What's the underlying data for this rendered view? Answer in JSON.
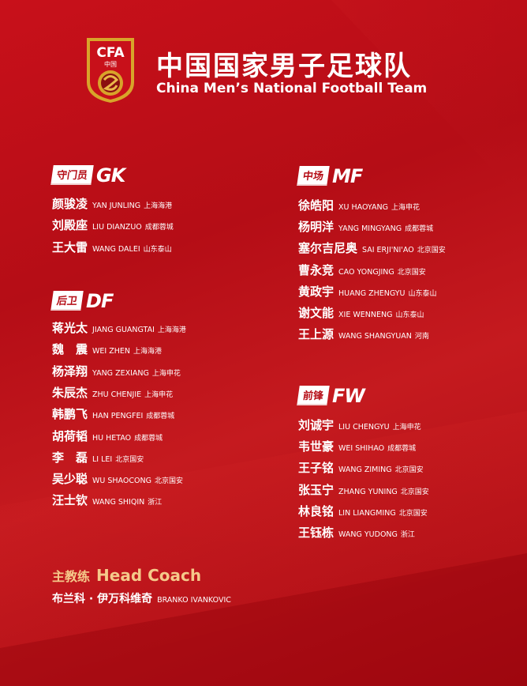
{
  "header": {
    "title_cn": "中国国家男子足球队",
    "title_en": "China Men’s National Football Team",
    "logo_text": "CFA 中国"
  },
  "colors": {
    "background": "#c8101a",
    "accent": "#f5c98a",
    "text": "#ffffff"
  },
  "sections": {
    "gk": {
      "cn": "守门员",
      "en": "GK",
      "players": [
        {
          "cn": "颜骏凌",
          "en": "YAN JUNLING",
          "club": "上海海港"
        },
        {
          "cn": "刘殿座",
          "en": "LIU DIANZUO",
          "club": "成都蓉城"
        },
        {
          "cn": "王大雷",
          "en": "WANG DALEI",
          "club": "山东泰山"
        }
      ]
    },
    "df": {
      "cn": "后卫",
      "en": "DF",
      "players": [
        {
          "cn": "蒋光太",
          "en": "JIANG GUANGTAI",
          "club": "上海海港"
        },
        {
          "cn": "魏　震",
          "en": "WEI ZHEN",
          "club": "上海海港"
        },
        {
          "cn": "杨泽翔",
          "en": "YANG ZEXIANG",
          "club": "上海申花"
        },
        {
          "cn": "朱辰杰",
          "en": "ZHU CHENJIE",
          "club": "上海申花"
        },
        {
          "cn": "韩鹏飞",
          "en": "HAN PENGFEI",
          "club": "成都蓉城"
        },
        {
          "cn": "胡荷韬",
          "en": "HU HETAO",
          "club": "成都蓉城"
        },
        {
          "cn": "李　磊",
          "en": "LI LEI",
          "club": "北京国安"
        },
        {
          "cn": "吴少聪",
          "en": "WU SHAOCONG",
          "club": "北京国安"
        },
        {
          "cn": "汪士钦",
          "en": "WANG SHIQIN",
          "club": "浙江"
        }
      ]
    },
    "mf": {
      "cn": "中场",
      "en": "MF",
      "players": [
        {
          "cn": "徐皓阳",
          "en": "XU HAOYANG",
          "club": "上海申花"
        },
        {
          "cn": "杨明洋",
          "en": "YANG MINGYANG",
          "club": "成都蓉城"
        },
        {
          "cn": "塞尔吉尼奥",
          "en": "SAI ERJI'NI'AO",
          "club": "北京国安"
        },
        {
          "cn": "曹永竞",
          "en": "CAO YONGJING",
          "club": "北京国安"
        },
        {
          "cn": "黄政宇",
          "en": "HUANG ZHENGYU",
          "club": "山东泰山"
        },
        {
          "cn": "谢文能",
          "en": "XIE WENNENG",
          "club": "山东泰山"
        },
        {
          "cn": "王上源",
          "en": "WANG SHANGYUAN",
          "club": "河南"
        }
      ]
    },
    "fw": {
      "cn": "前锋",
      "en": "FW",
      "players": [
        {
          "cn": "刘诚宇",
          "en": "LIU CHENGYU",
          "club": "上海申花"
        },
        {
          "cn": "韦世豪",
          "en": "WEI SHIHAO",
          "club": "成都蓉城"
        },
        {
          "cn": "王子铭",
          "en": "WANG ZIMING",
          "club": "北京国安"
        },
        {
          "cn": "张玉宁",
          "en": "ZHANG YUNING",
          "club": "北京国安"
        },
        {
          "cn": "林良铭",
          "en": "LIN LIANGMING",
          "club": "北京国安"
        },
        {
          "cn": "王钰栋",
          "en": "WANG YUDONG",
          "club": "浙江"
        }
      ]
    }
  },
  "coach": {
    "title_cn": "主教练",
    "title_en": "Head Coach",
    "name_cn": "布兰科 · 伊万科维奇",
    "name_en": "BRANKO IVANKOVIC"
  }
}
